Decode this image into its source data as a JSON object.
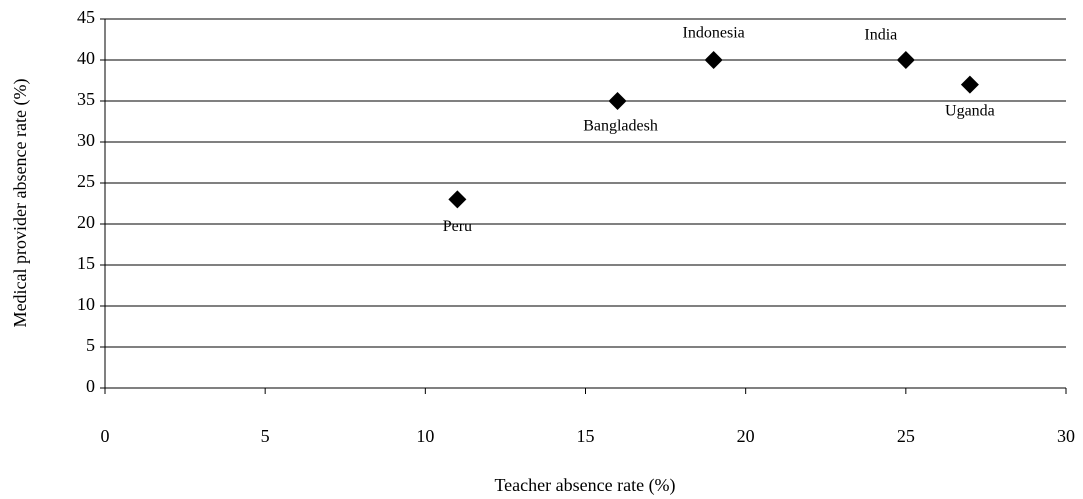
{
  "chart_data": {
    "type": "scatter",
    "x": [
      11,
      16,
      19,
      25,
      27
    ],
    "values": [
      23,
      35,
      40,
      40,
      37
    ],
    "point_labels": [
      "Peru",
      "Bangladesh",
      "Indonesia",
      "India",
      "Uganda"
    ],
    "color": "#000000",
    "xlabel": "Teacher absence rate (%)",
    "ylabel": "Medical provider absence rate (%)",
    "xlim": [
      0,
      30
    ],
    "xticks": [
      0,
      5,
      10,
      15,
      20,
      25,
      30
    ],
    "ylim": [
      0,
      45
    ],
    "yticks": [
      0,
      5,
      10,
      15,
      20,
      25,
      30,
      35,
      40,
      45
    ],
    "grid": true
  }
}
